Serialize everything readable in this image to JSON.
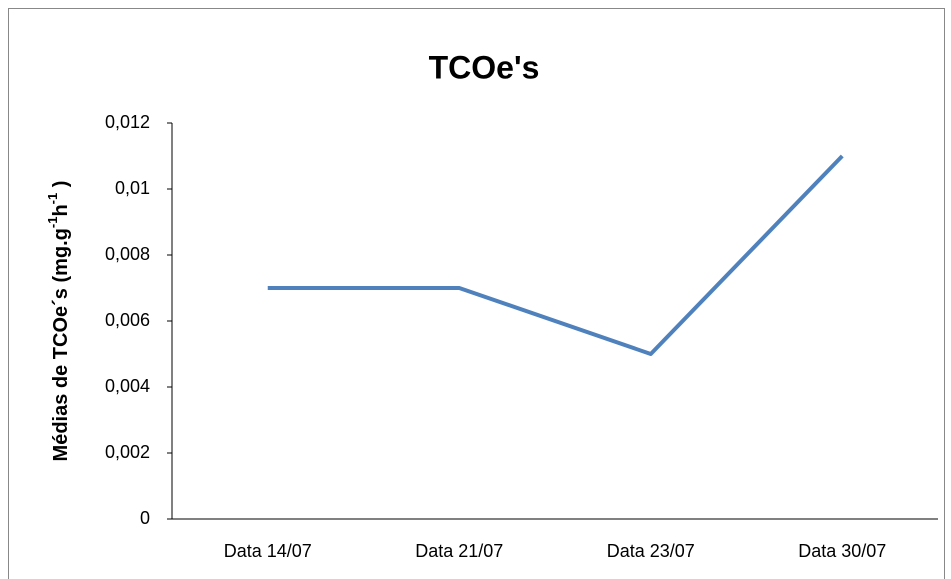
{
  "chart_data": {
    "type": "line",
    "title": "TCOe's",
    "y_label": [
      "Médias de TCOe´s (mg.g",
      "-1",
      "h",
      "-1",
      " )"
    ],
    "categories": [
      "Data 14/07",
      "Data 21/07",
      "Data 23/07",
      "Data 30/07"
    ],
    "series": [
      {
        "name": "TCOe's",
        "color": "#4f81bd",
        "values": [
          0.007,
          0.007,
          0.005,
          0.011
        ]
      }
    ],
    "ylim": [
      0,
      0.012
    ],
    "yticks": [
      0,
      {
        "value": 0.002,
        "label": "0,002"
      },
      {
        "value": 0.004,
        "label": "0,004"
      },
      {
        "value": 0.006,
        "label": "0,006"
      },
      {
        "value": 0.008,
        "label": "0,008"
      },
      {
        "value": 0.01,
        "label": "0,01"
      },
      {
        "value": 0.012,
        "label": "0,012"
      }
    ],
    "grid": false
  }
}
